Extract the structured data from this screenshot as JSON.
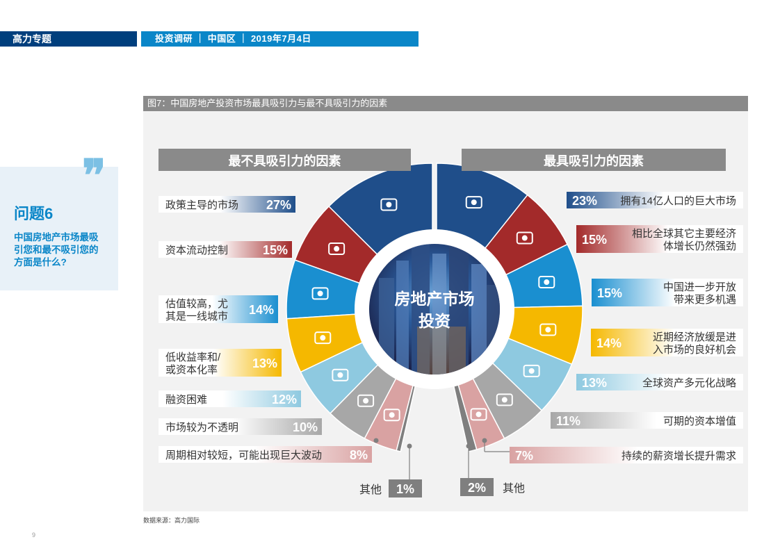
{
  "header": {
    "left_label": "高力专题",
    "right_label": "投资调研 ｜ 中国区 ｜ 2019年7月4日"
  },
  "question": {
    "quote_mark": "❞",
    "title": "问题6",
    "text": "中国房地产市场最吸引您和最不吸引您的方面是什么?"
  },
  "figure_title": "图7：中国房地产投资市场最具吸引力与最不具吸引力的因素",
  "source": "数据来源：高力国际",
  "page_number": "9",
  "center_label_line1": "房地产市场",
  "center_label_line2": "投资",
  "chart_data": {
    "type": "pie",
    "title": "图7：中国房地产投资市场最具吸引力与最不具吸引力的因素",
    "panels": [
      {
        "name": "最不具吸引力的因素",
        "side": "left",
        "slices": [
          {
            "label": "政策主导的市场",
            "value": 27,
            "display": "27%",
            "color": "#1f4e8a",
            "icon": "speaker-podium-icon"
          },
          {
            "label": "资本流动控制",
            "value": 15,
            "display": "15%",
            "color": "#a32a2a",
            "icon": "money-lock-icon"
          },
          {
            "label": "估值较高，尤其是一线城市",
            "line1": "估值较高，尤",
            "line2": "其是一线城市",
            "value": 14,
            "display": "14%",
            "color": "#1a8fd0",
            "icon": "dollar-magnifier-icon"
          },
          {
            "label": "低收益率和/或资本化率",
            "line1": "低收益率和/",
            "line2": "或资本化率",
            "value": 13,
            "display": "13%",
            "color": "#f5b800",
            "icon": "hand-coins-icon"
          },
          {
            "label": "融资困难",
            "value": 12,
            "display": "12%",
            "color": "#8ec9e0",
            "icon": "money-bags-icon"
          },
          {
            "label": "市场较为不透明",
            "value": 10,
            "display": "10%",
            "color": "#a7a7a7",
            "icon": "binoculars-icon"
          },
          {
            "label": "周期相对较短，可能出现巨大波动",
            "value": 8,
            "display": "8%",
            "color": "#d9a2a2",
            "icon": "cycle-arrows-icon"
          },
          {
            "label": "其他",
            "value": 1,
            "display": "1%",
            "color": "#7f7f7f",
            "icon": ""
          }
        ]
      },
      {
        "name": "最具吸引力的因素",
        "side": "right",
        "slices": [
          {
            "label": "拥有14亿人口的巨大市场",
            "value": 23,
            "display": "23%",
            "color": "#1f4e8a",
            "icon": "people-group-icon"
          },
          {
            "label": "相比全球其它主要经济体增长仍然强劲",
            "line1": "相比全球其它主要经济",
            "line2": "体增长仍然强劲",
            "value": 15,
            "display": "15%",
            "color": "#a32a2a",
            "icon": "growth-chart-icon"
          },
          {
            "label": "中国进一步开放带来更多机遇",
            "line1": "中国进一步开放",
            "line2": "带来更多机遇",
            "value": 15,
            "display": "15%",
            "color": "#1a8fd0",
            "icon": "handshake-icon"
          },
          {
            "label": "近期经济放缓是进入市场的良好机会",
            "line1": "近期经济放缓是进",
            "line2": "入市场的良好机会",
            "value": 14,
            "display": "14%",
            "color": "#f5b800",
            "icon": "building-icon"
          },
          {
            "label": "全球资产多元化战略",
            "value": 13,
            "display": "13%",
            "color": "#8ec9e0",
            "icon": "globe-icon"
          },
          {
            "label": "可期的资本增值",
            "value": 11,
            "display": "11%",
            "color": "#a7a7a7",
            "icon": "money-bag-icon"
          },
          {
            "label": "持续的薪资增长提升需求",
            "value": 7,
            "display": "7%",
            "color": "#d9a2a2",
            "icon": "cash-stack-icon"
          },
          {
            "label": "其他",
            "value": 2,
            "display": "2%",
            "color": "#7f7f7f",
            "icon": ""
          }
        ]
      }
    ]
  }
}
